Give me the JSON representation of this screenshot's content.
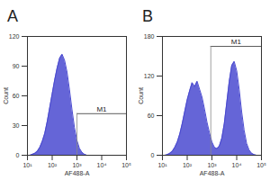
{
  "chart_data": [
    {
      "type": "area",
      "title": "A",
      "x_label": "AF488-A",
      "y_label": "Count",
      "log": "x",
      "color": "#4a4ad0",
      "x": [
        10,
        12.6,
        15.8,
        20,
        25.1,
        31.6,
        39.8,
        50.1,
        63.1,
        79.4,
        100,
        126,
        158,
        200,
        251,
        316,
        398,
        501,
        631,
        794,
        1000,
        1259,
        1585,
        1995,
        2512,
        3162,
        3981,
        5012,
        6310,
        7943,
        10000,
        12589,
        15849,
        19953,
        25119,
        31623,
        39811,
        50119,
        63096,
        79433,
        100000
      ],
      "values": [
        0,
        0,
        1,
        2,
        4,
        8,
        14,
        22,
        34,
        48,
        62,
        76,
        88,
        98,
        102,
        96,
        84,
        66,
        46,
        28,
        15,
        7,
        3,
        1,
        0,
        0,
        0,
        0,
        0,
        0,
        0,
        0,
        0,
        0,
        0,
        0,
        0,
        0,
        0,
        0,
        0
      ],
      "xlim": [
        10,
        100000
      ],
      "xticks": [
        {
          "value": 10,
          "label": "10¹"
        },
        {
          "value": 100,
          "label": "10²"
        },
        {
          "value": 1000,
          "label": "10³"
        },
        {
          "value": 10000,
          "label": "10⁴"
        },
        {
          "value": 100000,
          "label": "10⁵"
        }
      ],
      "ylim": [
        0,
        120
      ],
      "yticks": [
        0,
        30,
        60,
        90,
        120
      ],
      "gate": {
        "label": "M1",
        "x1": 1000,
        "x2": 100000,
        "y": 42
      }
    },
    {
      "type": "area",
      "title": "B",
      "x_label": "AF488-A",
      "y_label": "Count",
      "log": "x",
      "color": "#4a4ad0",
      "x": [
        10,
        12.6,
        15.8,
        20,
        25.1,
        31.6,
        39.8,
        50.1,
        63.1,
        79.4,
        100,
        126,
        158,
        200,
        251,
        316,
        398,
        501,
        631,
        794,
        1000,
        1259,
        1585,
        1995,
        2512,
        3162,
        3981,
        5012,
        6310,
        7943,
        10000,
        12589,
        15849,
        19953,
        25119,
        31623,
        39811,
        50119,
        63096,
        79433,
        100000
      ],
      "values": [
        0,
        0,
        1,
        3,
        6,
        12,
        20,
        32,
        48,
        66,
        84,
        98,
        110,
        104,
        112,
        100,
        88,
        70,
        50,
        34,
        20,
        12,
        10,
        14,
        26,
        48,
        80,
        112,
        136,
        142,
        128,
        100,
        66,
        38,
        18,
        8,
        3,
        1,
        0,
        0,
        0
      ],
      "xlim": [
        10,
        100000
      ],
      "xticks": [
        {
          "value": 10,
          "label": "10¹"
        },
        {
          "value": 100,
          "label": "10²"
        },
        {
          "value": 1000,
          "label": "10³"
        },
        {
          "value": 10000,
          "label": "10⁴"
        },
        {
          "value": 100000,
          "label": "10⁵"
        }
      ],
      "ylim": [
        0,
        180
      ],
      "yticks": [
        0,
        60,
        120,
        180
      ],
      "gate": {
        "label": "M1",
        "x1": 900,
        "x2": 100000,
        "y": 165
      }
    }
  ]
}
